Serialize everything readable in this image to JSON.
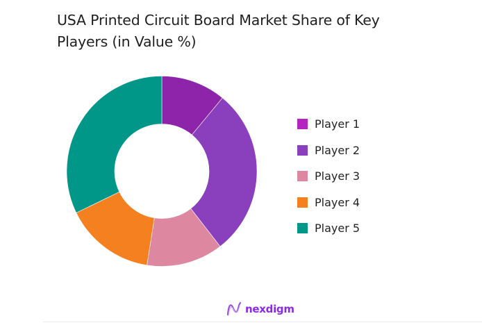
{
  "title": "USA Printed Circuit Board Market Share of Key Players (in Value %)",
  "chart_data": {
    "type": "pie",
    "variant": "donut",
    "title": "USA Printed Circuit Board Market Share of Key Players (in Value %)",
    "categories": [
      "Player 1",
      "Player 2",
      "Player 3",
      "Player 4",
      "Player 5"
    ],
    "values": [
      11,
      28.5,
      13,
      15.3,
      32.2
    ],
    "unit": "%",
    "slice_colors": [
      "#8e24aa",
      "#8a3fbc",
      "#dd88a0",
      "#f5801f",
      "#009688"
    ],
    "legend_colors": [
      "#b424c0",
      "#8a3fbc",
      "#dd88a0",
      "#f5801f",
      "#009688"
    ],
    "legend_position": "right",
    "start_angle_deg": 0,
    "direction": "clockwise"
  },
  "legend": [
    {
      "label": "Player 1",
      "color": "#b424c0"
    },
    {
      "label": "Player 2",
      "color": "#8a3fbc"
    },
    {
      "label": "Player 3",
      "color": "#dd88a0"
    },
    {
      "label": "Player 4",
      "color": "#f5801f"
    },
    {
      "label": "Player 5",
      "color": "#009688"
    }
  ],
  "footer": {
    "brand": "nexdigm",
    "logo_icon": "nexdigm-wave-logo"
  }
}
